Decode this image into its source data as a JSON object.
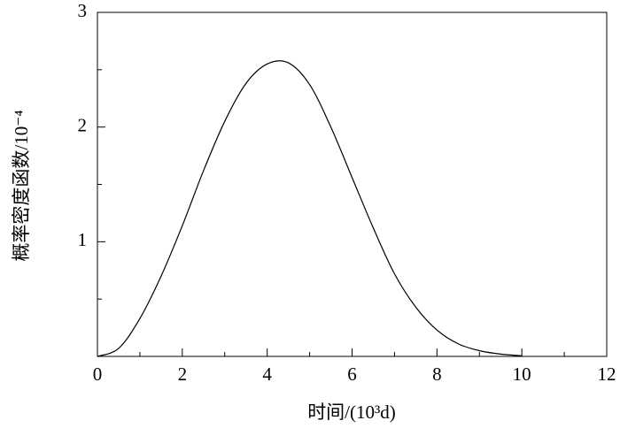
{
  "chart_data": {
    "type": "line",
    "xlabel": "时间/(10³d)",
    "ylabel": "概率密度函数/10⁻⁴",
    "x": [
      0,
      0.5,
      1,
      1.5,
      2,
      2.5,
      3,
      3.5,
      4,
      4.5,
      5,
      5.5,
      6,
      6.5,
      7,
      7.5,
      8,
      8.5,
      9,
      9.5,
      10
    ],
    "series": [
      {
        "color": "#000000",
        "values": [
          0,
          0.07,
          0.33,
          0.7,
          1.14,
          1.62,
          2.05,
          2.38,
          2.55,
          2.56,
          2.37,
          2.0,
          1.56,
          1.12,
          0.72,
          0.43,
          0.23,
          0.11,
          0.05,
          0.02,
          0.005
        ]
      }
    ],
    "xlim": [
      0,
      12
    ],
    "xticks": [
      0,
      2,
      4,
      6,
      8,
      10,
      12
    ],
    "xminor": [
      1,
      3,
      5,
      7,
      9,
      11
    ],
    "ylim": [
      0,
      3
    ],
    "yticks": [
      1,
      2,
      3
    ],
    "yminor": [
      0.5,
      1.5,
      2.5
    ]
  }
}
